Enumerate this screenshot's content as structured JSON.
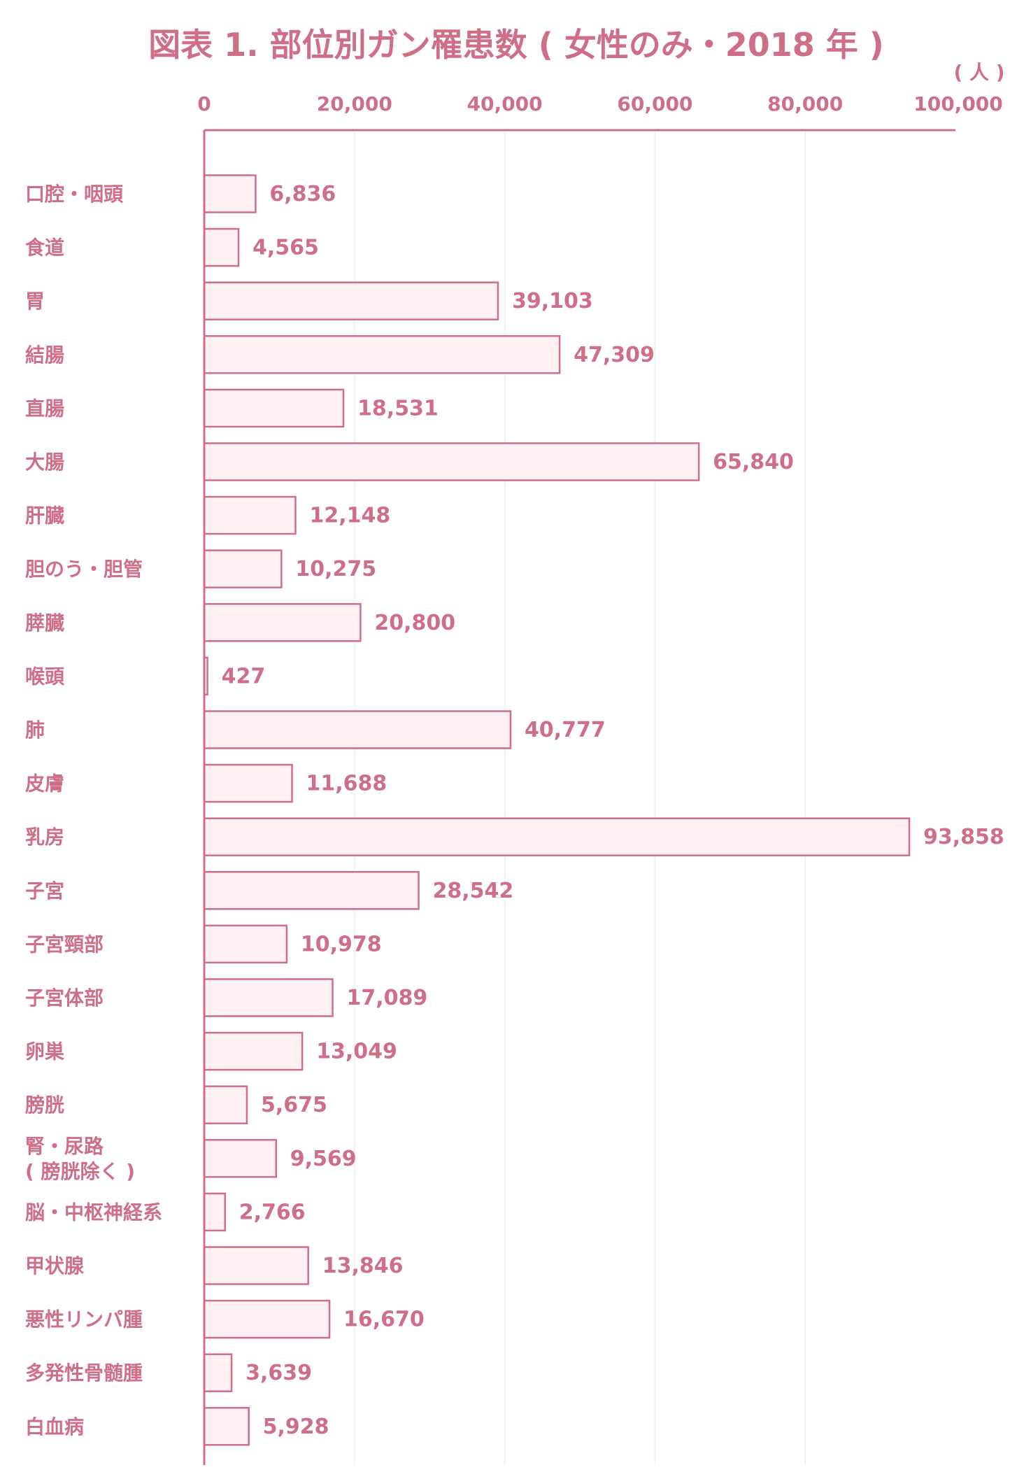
{
  "chart_data": {
    "type": "bar",
    "orientation": "horizontal",
    "title": "図表 1. 部位別ガン罹患数 ( 女性のみ・2018 年 )",
    "unit_label": "( 人 )",
    "xlim": [
      0,
      100000
    ],
    "x_ticks": [
      "0",
      "20,000",
      "40,000",
      "60,000",
      "80,000",
      "100,000"
    ],
    "tick_values": [
      0,
      20000,
      40000,
      60000,
      80000,
      100000
    ],
    "axis_position": "top",
    "grid": true,
    "legend": "none",
    "categories": [
      [
        "口腔・咽頭"
      ],
      [
        "食道"
      ],
      [
        "胃"
      ],
      [
        "結腸"
      ],
      [
        "直腸"
      ],
      [
        "大腸"
      ],
      [
        "肝臓"
      ],
      [
        "胆のう・胆管"
      ],
      [
        "膵臓"
      ],
      [
        "喉頭"
      ],
      [
        "肺"
      ],
      [
        "皮膚"
      ],
      [
        "乳房"
      ],
      [
        "子宮"
      ],
      [
        "子宮頸部"
      ],
      [
        "子宮体部"
      ],
      [
        "卵巣"
      ],
      [
        "膀胱"
      ],
      [
        "腎・尿路",
        "( 膀胱除く )"
      ],
      [
        "脳・中枢神経系"
      ],
      [
        "甲状腺"
      ],
      [
        "悪性リンパ腫"
      ],
      [
        "多発性骨髄腫"
      ],
      [
        "白血病"
      ]
    ],
    "values": [
      6836,
      4565,
      39103,
      47309,
      18531,
      65840,
      12148,
      10275,
      20800,
      427,
      40777,
      11688,
      93858,
      28542,
      10978,
      17089,
      13049,
      5675,
      9569,
      2766,
      13846,
      16670,
      3639,
      5928
    ],
    "value_labels": [
      "6,836",
      "4,565",
      "39,103",
      "47,309",
      "18,531",
      "65,840",
      "12,148",
      "10,275",
      "20,800",
      "427",
      "40,777",
      "11,688",
      "93,858",
      "28,542",
      "10,978",
      "17,089",
      "13,049",
      "5,675",
      "9,569",
      "2,766",
      "13,846",
      "16,670",
      "3,639",
      "5,928"
    ],
    "colors": {
      "primary": "#cf6f87",
      "bar_fill": "#fff0f4",
      "bar_stroke": "#cf6f87",
      "grid": "#f0f0f0"
    }
  }
}
